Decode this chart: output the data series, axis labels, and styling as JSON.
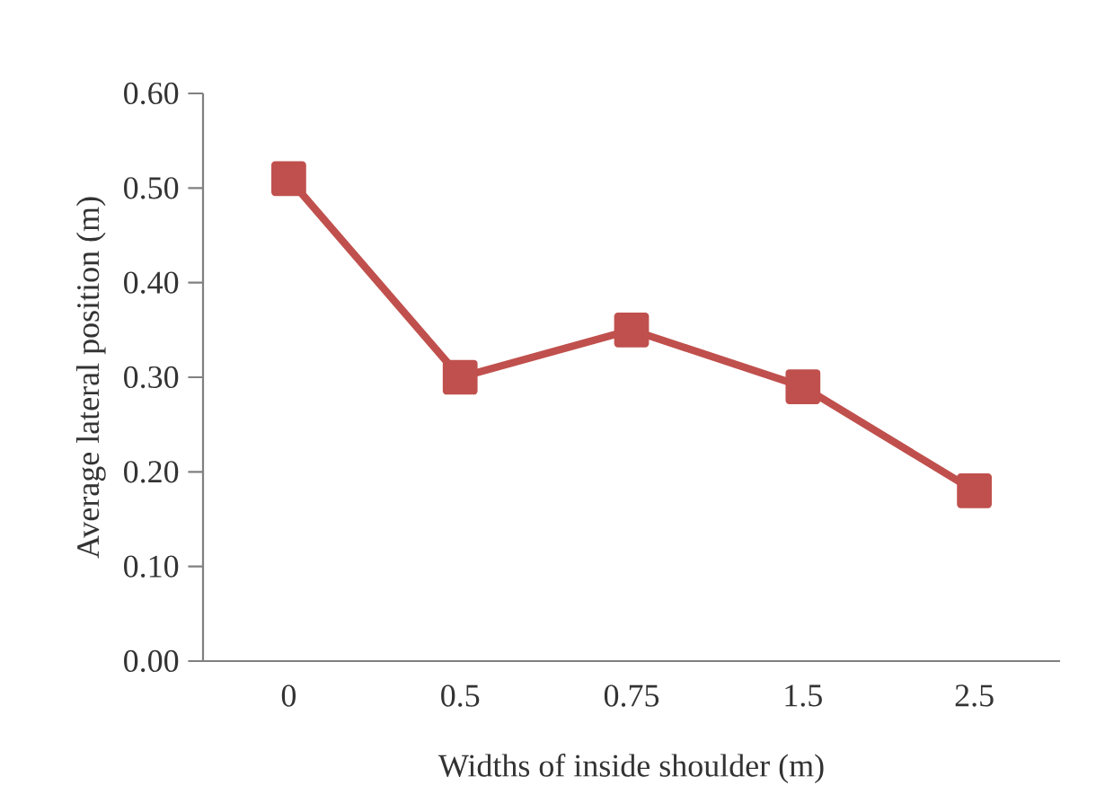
{
  "chart_data": {
    "type": "line",
    "xlabel": "Widths of inside shoulder (m)",
    "ylabel": "Average lateral position (m)",
    "categories": [
      "0",
      "0.5",
      "0.75",
      "1.5",
      "2.5"
    ],
    "series": [
      {
        "color": "#c0504d",
        "values": [
          0.51,
          0.3,
          0.35,
          0.29,
          0.18
        ]
      }
    ],
    "ylim": [
      0,
      0.6
    ],
    "yticks": [
      {
        "value": 0,
        "label": "0.00"
      },
      {
        "value": 0.1,
        "label": "0.10"
      },
      {
        "value": 0.2,
        "label": "0.20"
      },
      {
        "value": 0.3,
        "label": "0.30"
      },
      {
        "value": 0.4,
        "label": "0.40"
      },
      {
        "value": 0.5,
        "label": "0.50"
      },
      {
        "value": 0.6,
        "label": "0.60"
      }
    ],
    "marker": "square",
    "line_style": "solid",
    "grid": false
  }
}
